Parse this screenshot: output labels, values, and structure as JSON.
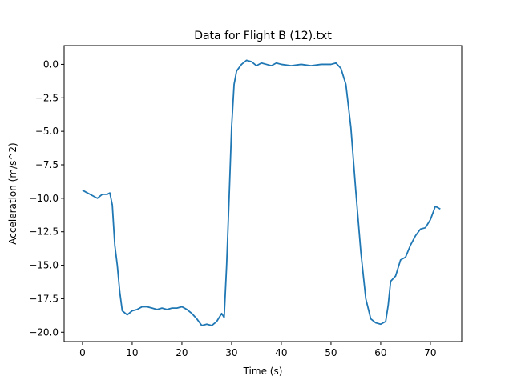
{
  "chart_data": {
    "type": "line",
    "title": "Data for Flight B (12).txt",
    "xlabel": "Time (s)",
    "ylabel": "Acceleration (m/s^2)",
    "x": [
      0,
      1,
      2,
      3,
      4,
      5,
      5.5,
      6,
      6.5,
      7,
      7.5,
      8,
      9,
      10,
      11,
      12,
      13,
      14,
      15,
      16,
      17,
      18,
      19,
      20,
      21,
      22,
      23,
      24,
      25,
      26,
      27,
      28,
      28.5,
      29,
      29.5,
      30,
      30.5,
      31,
      32,
      33,
      34,
      35,
      36,
      37,
      38,
      39,
      40,
      42,
      44,
      46,
      48,
      50,
      51,
      52,
      53,
      54,
      55,
      56,
      57,
      58,
      59,
      60,
      61,
      61.5,
      62,
      63,
      64,
      65,
      66,
      67,
      68,
      69,
      70,
      71,
      72
    ],
    "series": [
      {
        "name": "Flight B",
        "color": "#1f77b4",
        "values": [
          -9.4,
          -9.6,
          -9.8,
          -10.0,
          -9.7,
          -9.7,
          -9.6,
          -10.5,
          -13.5,
          -15,
          -17,
          -18.4,
          -18.7,
          -18.4,
          -18.3,
          -18.1,
          -18.1,
          -18.2,
          -18.3,
          -18.2,
          -18.3,
          -18.2,
          -18.2,
          -18.1,
          -18.3,
          -18.6,
          -19.0,
          -19.5,
          -19.4,
          -19.5,
          -19.2,
          -18.6,
          -18.9,
          -15,
          -10,
          -4.7,
          -1.5,
          -0.5,
          0,
          0.3,
          0.2,
          -0.1,
          0.1,
          0,
          -0.1,
          0.1,
          0,
          -0.1,
          0,
          -0.1,
          0,
          0,
          0.1,
          -0.3,
          -1.5,
          -4.7,
          -9.5,
          -14,
          -17.5,
          -19,
          -19.3,
          -19.4,
          -19.2,
          -18,
          -16.2,
          -15.8,
          -14.6,
          -14.4,
          -13.5,
          -12.8,
          -12.3,
          -12.2,
          -11.6,
          -10.6,
          -10.8
        ]
      }
    ],
    "xlim": [
      -3.7,
      76.3
    ],
    "ylim": [
      -20.7,
      1.4
    ],
    "xticks": [
      0,
      10,
      20,
      30,
      40,
      50,
      60,
      70
    ],
    "yticks": [
      {
        "value": 0,
        "label": "0.0"
      },
      {
        "value": -2.5,
        "label": "−2.5"
      },
      {
        "value": -5,
        "label": "−5.0"
      },
      {
        "value": -7.5,
        "label": "−7.5"
      },
      {
        "value": -10,
        "label": "−10.0"
      },
      {
        "value": -12.5,
        "label": "−12.5"
      },
      {
        "value": -15,
        "label": "−15.0"
      },
      {
        "value": -17.5,
        "label": "−17.5"
      },
      {
        "value": -20,
        "label": "−20.0"
      }
    ]
  }
}
